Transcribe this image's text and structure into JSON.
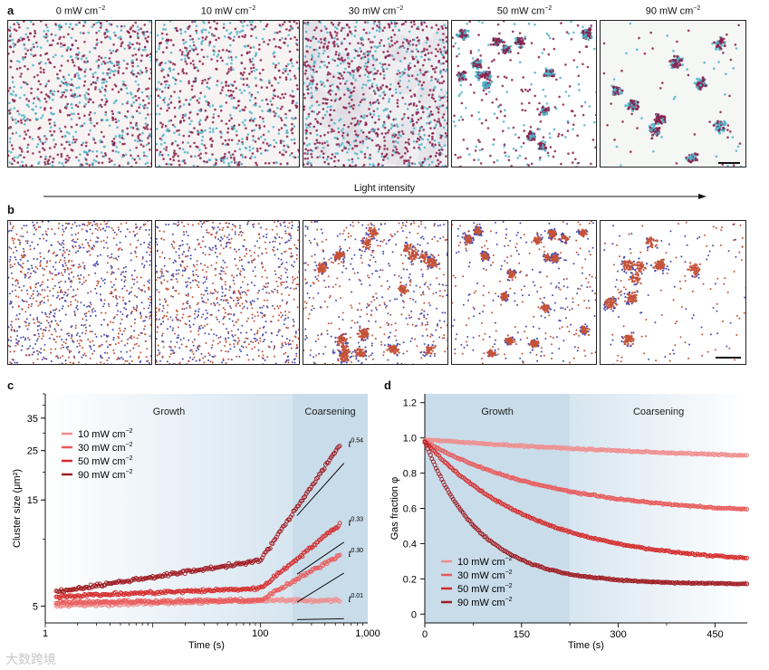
{
  "panels": {
    "a_letter": "a",
    "b_letter": "b",
    "c_letter": "c",
    "d_letter": "d"
  },
  "intensities": [
    {
      "value": "0 mW cm",
      "sup": "−2"
    },
    {
      "value": "10 mW cm",
      "sup": "−2"
    },
    {
      "value": "30 mW cm",
      "sup": "−2"
    },
    {
      "value": "50 mW cm",
      "sup": "−2"
    },
    {
      "value": "90 mW cm",
      "sup": "−2"
    }
  ],
  "arrow_label": "Light intensity",
  "watermark": "大数跨境",
  "colors": {
    "particle_red": "#8a1f4a",
    "particle_cyan": "#4fb3c9",
    "sim_red": "#c4533a",
    "sim_blue": "#4a4fb0",
    "bg_blue": "#c9dcea",
    "series_10": "#ef8d8d",
    "series_30": "#e85a5a",
    "series_50": "#d42b2b",
    "series_90": "#9e1c22"
  },
  "chart_data": [
    {
      "id": "c",
      "type": "scatter",
      "xscale": "log",
      "yscale": "log",
      "xlim": [
        1,
        1000
      ],
      "ylim": [
        4.2,
        45
      ],
      "xlabel": "Time (s)",
      "ylabel": "Cluster size (μm²)",
      "xticks": [
        "1",
        "100",
        "1,000"
      ],
      "xtick_values": [
        1,
        100,
        1000
      ],
      "yticks": [
        "5",
        "15",
        "25",
        "35"
      ],
      "ytick_values": [
        5,
        15,
        25,
        35
      ],
      "regions": [
        {
          "label": "Growth",
          "from": 1,
          "to": 200
        },
        {
          "label": "Coarsening",
          "from": 200,
          "to": 1000
        }
      ],
      "legend_position": "top-left",
      "series": [
        {
          "name": "10 mW cm",
          "sup": "−2",
          "colorKey": "series_10",
          "t0": 1,
          "y0": 5.0,
          "y100": 5.3,
          "y550": 5.3,
          "exponent_label": "t",
          "exponent": "0.01"
        },
        {
          "name": "30 mW cm",
          "sup": "−2",
          "colorKey": "series_30",
          "t0": 1,
          "y0": 5.2,
          "y100": 5.3,
          "y550": 8.5,
          "exponent_label": "t",
          "exponent": "0.30"
        },
        {
          "name": "50 mW cm",
          "sup": "−2",
          "colorKey": "series_50",
          "t0": 1,
          "y0": 5.5,
          "y100": 6.0,
          "y550": 11.7,
          "exponent_label": "t",
          "exponent": "0.33"
        },
        {
          "name": "90 mW cm",
          "sup": "−2",
          "colorKey": "series_90",
          "t0": 1,
          "y0": 5.7,
          "y100": 8.0,
          "y550": 26.5,
          "exponent_label": "t",
          "exponent": "0.54"
        }
      ]
    },
    {
      "id": "d",
      "type": "scatter",
      "xlim": [
        0,
        500
      ],
      "ylim": [
        -0.05,
        1.25
      ],
      "xlabel": "Time (s)",
      "ylabel": "Gas fraction φ",
      "xticks": [
        "0",
        "150",
        "300",
        "450"
      ],
      "xtick_values": [
        0,
        150,
        300,
        450
      ],
      "yticks": [
        "0",
        "0.2",
        "0.4",
        "0.6",
        "0.8",
        "1.0",
        "1.2"
      ],
      "ytick_values": [
        0,
        0.2,
        0.4,
        0.6,
        0.8,
        1.0,
        1.2
      ],
      "regions": [
        {
          "label": "Growth",
          "from": 0,
          "to": 225
        },
        {
          "label": "Coarsening",
          "from": 225,
          "to": 500
        }
      ],
      "legend_position": "bottom-left",
      "series": [
        {
          "name": "10 mW cm",
          "sup": "−2",
          "colorKey": "series_10",
          "start": 0.99,
          "end": 0.83,
          "tau": 600
        },
        {
          "name": "30 mW cm",
          "sup": "−2",
          "colorKey": "series_30",
          "start": 0.98,
          "end": 0.56,
          "tau": 200
        },
        {
          "name": "50 mW cm",
          "sup": "−2",
          "colorKey": "series_50",
          "start": 0.98,
          "end": 0.28,
          "tau": 170
        },
        {
          "name": "90 mW cm",
          "sup": "−2",
          "colorKey": "series_90",
          "start": 0.98,
          "end": 0.17,
          "tau": 85
        }
      ]
    }
  ]
}
